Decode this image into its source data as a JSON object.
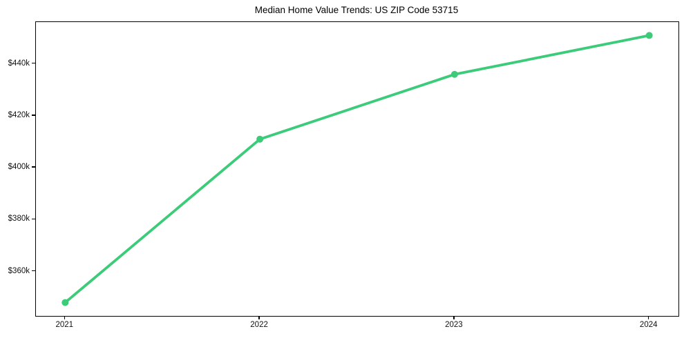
{
  "chart_data": {
    "type": "line",
    "title": "Median Home Value Trends: US ZIP Code 53715",
    "x": [
      2021,
      2022,
      2023,
      2024
    ],
    "values": [
      348000,
      411000,
      436000,
      451000
    ],
    "xlabel": "",
    "ylabel": "",
    "xtick_labels": [
      "2021",
      "2022",
      "2023",
      "2024"
    ],
    "xtick_values": [
      2021,
      2022,
      2023,
      2024
    ],
    "ytick_labels": [
      "$360k",
      "$380k",
      "$400k",
      "$420k",
      "$440k"
    ],
    "ytick_values": [
      360000,
      380000,
      400000,
      420000,
      440000
    ],
    "xlim": [
      2020.85,
      2024.15
    ],
    "ylim": [
      342850,
      456150
    ],
    "grid": false,
    "legend_position": "none",
    "line_color": "#3bcb79",
    "marker": "circle",
    "marker_radius": 5,
    "line_width": 3.8,
    "axis_color": "#000000",
    "background_color": "#ffffff"
  }
}
